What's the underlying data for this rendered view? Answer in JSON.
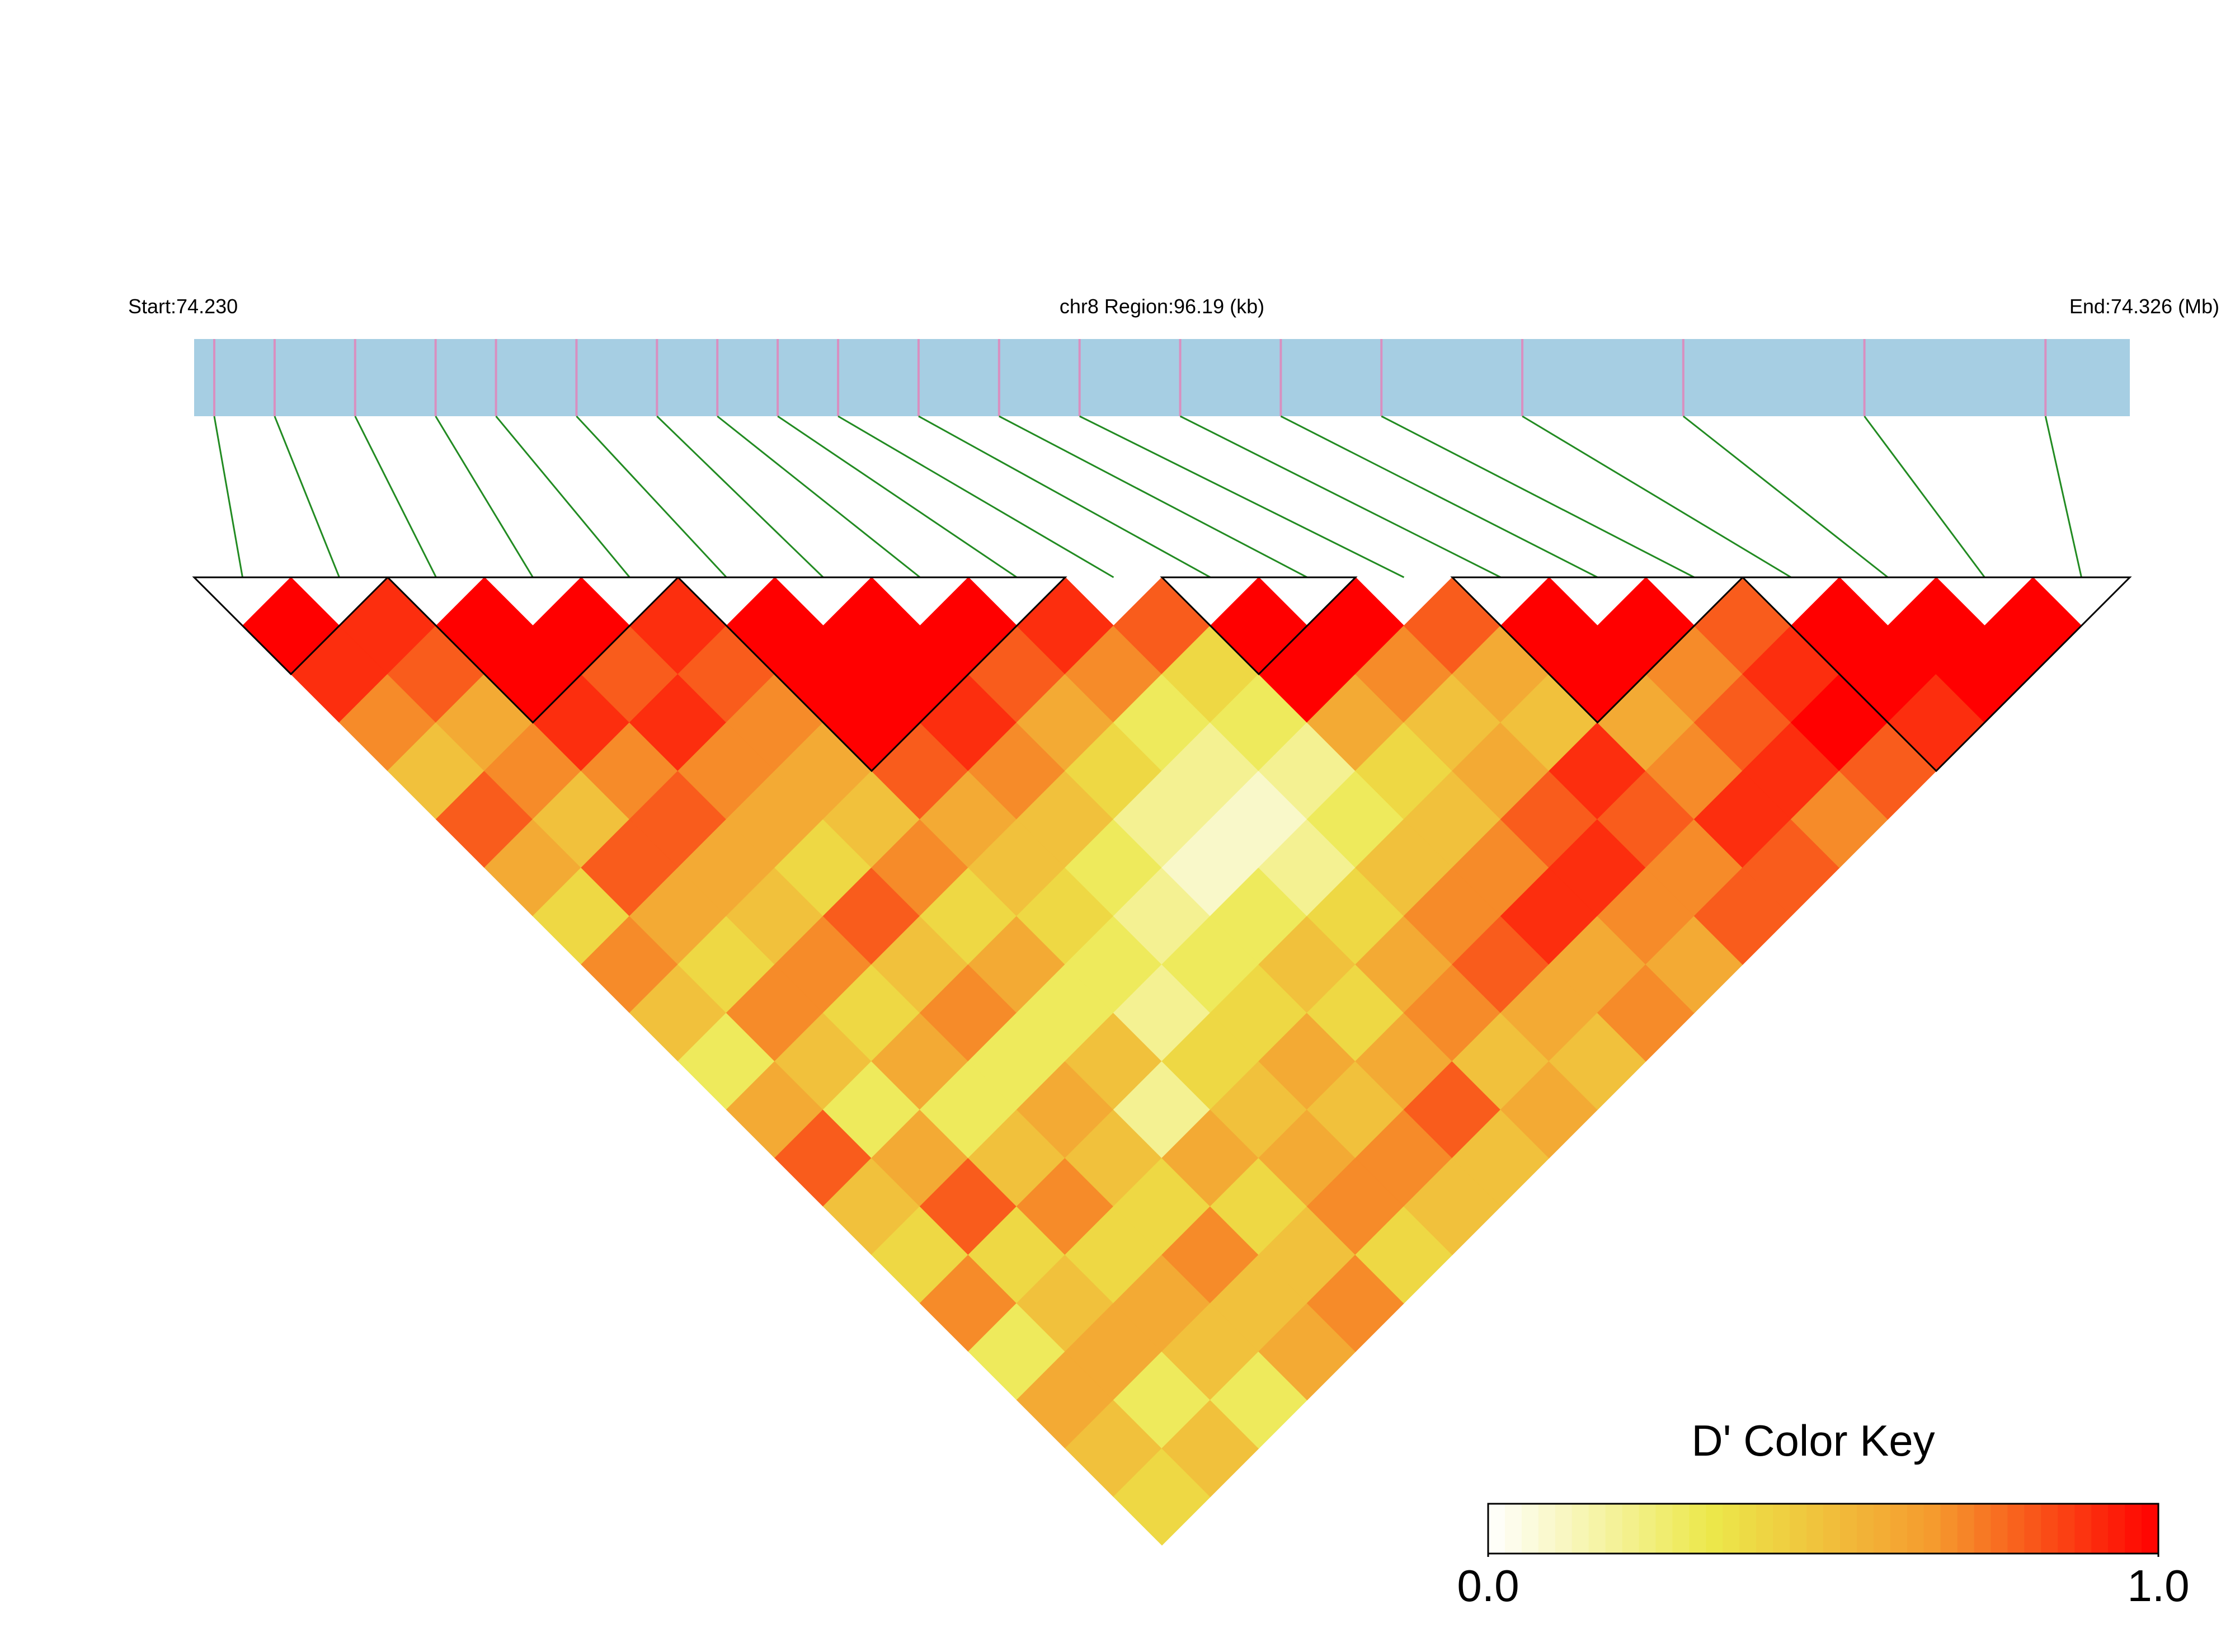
{
  "chart_data": {
    "type": "ld_heatmap",
    "start_label": "Start:74.230",
    "region_label": "chr8 Region:96.19 (kb)",
    "end_label": "End:74.326 (Mb)",
    "key_title": "D' Color Key",
    "xlim": [
      74.23,
      74.32619
    ],
    "snp_positions": [
      74.231,
      74.234,
      74.238,
      74.242,
      74.245,
      74.249,
      74.253,
      74.256,
      74.259,
      74.262,
      74.266,
      74.27,
      74.274,
      74.279,
      74.284,
      74.289,
      74.296,
      74.304,
      74.313,
      74.322
    ],
    "dprime": [
      [
        1,
        0.9,
        0.7,
        0.5,
        0.8,
        0.6,
        0.4,
        0.7,
        0.5,
        0.3,
        0.6,
        0.8,
        0.5,
        0.4,
        0.7,
        0.3,
        0.6,
        0.5,
        0.4
      ],
      [
        0.9,
        0.8,
        0.6,
        0.7,
        0.5,
        0.8,
        0.6,
        0.4,
        0.7,
        0.5,
        0.3,
        0.6,
        0.8,
        0.4,
        0.5,
        0.6,
        0.3,
        0.5
      ],
      [
        1,
        1,
        0.9,
        0.7,
        0.8,
        0.6,
        0.5,
        0.7,
        0.4,
        0.6,
        0.3,
        0.5,
        0.7,
        0.4,
        0.6,
        0.5,
        0.3
      ],
      [
        1,
        0.8,
        0.9,
        0.7,
        0.6,
        0.4,
        0.8,
        0.5,
        0.7,
        0.3,
        0.6,
        0.5,
        0.4,
        0.7,
        0.5,
        0.6
      ],
      [
        0.9,
        0.8,
        0.7,
        0.6,
        0.5,
        0.7,
        0.4,
        0.6,
        0.3,
        0.5,
        0.2,
        0.6,
        0.4,
        0.5,
        0.7
      ],
      [
        1,
        1,
        1,
        0.8,
        0.6,
        0.5,
        0.4,
        0.3,
        0.2,
        0.4,
        0.5,
        0.6,
        0.7,
        0.4
      ],
      [
        1,
        1,
        0.9,
        0.7,
        0.5,
        0.3,
        0.2,
        0.3,
        0.4,
        0.6,
        0.5,
        0.7,
        0.5
      ],
      [
        1,
        0.8,
        0.6,
        0.4,
        0.2,
        0.1,
        0.3,
        0.5,
        0.4,
        0.6,
        0.8,
        0.5
      ],
      [
        0.9,
        0.7,
        0.3,
        0.2,
        0.1,
        0.2,
        0.4,
        0.6,
        0.7,
        0.5,
        0.6
      ],
      [
        0.8,
        0.4,
        0.3,
        0.2,
        0.3,
        0.5,
        0.7,
        0.8,
        0.6,
        0.5
      ],
      [
        1,
        1,
        0.6,
        0.4,
        0.5,
        0.7,
        0.9,
        0.6,
        0.7
      ],
      [
        1,
        0.7,
        0.5,
        0.6,
        0.8,
        0.9,
        0.7,
        0.6
      ],
      [
        0.8,
        0.6,
        0.5,
        0.9,
        0.8,
        0.7,
        0.8
      ],
      [
        1,
        1,
        0.6,
        0.7,
        0.9,
        0.8
      ],
      [
        1,
        0.7,
        0.8,
        0.9,
        0.7
      ],
      [
        0.8,
        0.9,
        1,
        0.8
      ],
      [
        1,
        1,
        0.9
      ],
      [
        1,
        1
      ],
      [
        1
      ]
    ],
    "blocks": [
      [
        0,
        1
      ],
      [
        2,
        4
      ],
      [
        5,
        8
      ],
      [
        10,
        11
      ],
      [
        13,
        15
      ],
      [
        16,
        19
      ]
    ],
    "bar_color": "#a6cee3",
    "snp_tick_color": "#d98fc0",
    "connector_color": "#228b22",
    "block_outline_color": "#000000",
    "colorscale": [
      "#ffffff",
      "#ece84a",
      "#f59a2e",
      "#ff0000"
    ],
    "key_lim": [
      0,
      1
    ],
    "key_ticks": [
      {
        "value": 0,
        "label": "0.0"
      },
      {
        "value": 1,
        "label": "1.0"
      }
    ]
  }
}
